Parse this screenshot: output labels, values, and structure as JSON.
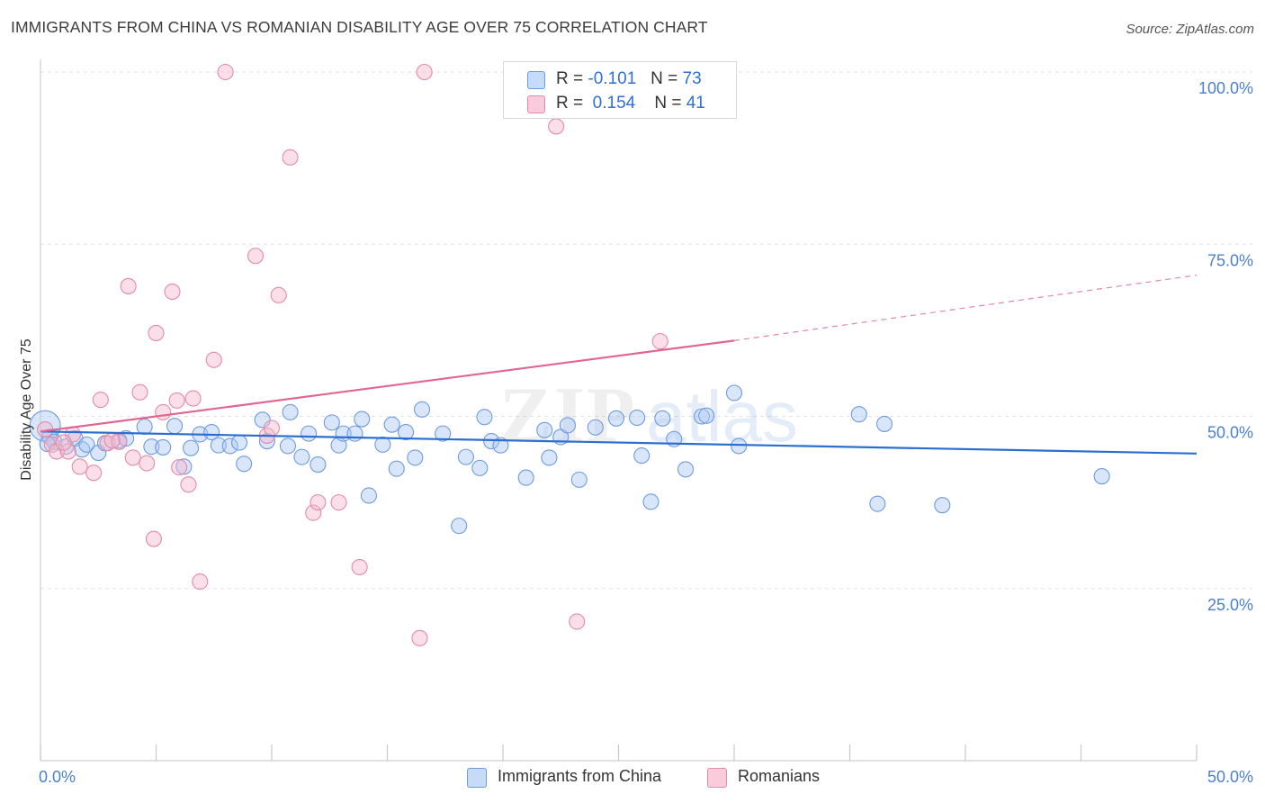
{
  "header": {
    "title": "IMMIGRANTS FROM CHINA VS ROMANIAN DISABILITY AGE OVER 75 CORRELATION CHART",
    "source": "Source: ZipAtlas.com"
  },
  "legend": {
    "r_label": "R =",
    "n_label": "N =",
    "rows": [
      {
        "r": "-0.101",
        "n": "73",
        "color": "#aac8f5"
      },
      {
        "r": "0.154",
        "n": "41",
        "color": "#f5b8cc"
      }
    ]
  },
  "bottom_legend": [
    {
      "label": "Immigrants from China",
      "color": "#aac8f5"
    },
    {
      "label": "Romanians",
      "color": "#f5b8cc"
    }
  ],
  "colors": {
    "blue_fill": "#aac8f5",
    "blue_stroke": "#6d9be0",
    "blue_line": "#2a6fd0",
    "pink_fill": "#f5b8cc",
    "pink_stroke": "#e58aa8",
    "pink_line": "#e0668f",
    "grid": "#e2e2e2",
    "tick_text": "#4a7fd1"
  },
  "chart_data": {
    "type": "scatter",
    "title": "IMMIGRANTS FROM CHINA VS ROMANIAN DISABILITY AGE OVER 75 CORRELATION CHART",
    "xlabel": "",
    "ylabel": "Disability Age Over 75",
    "xlim": [
      0,
      50
    ],
    "ylim": [
      0,
      100
    ],
    "x_tick_labels": [
      "0.0%",
      "50.0%"
    ],
    "y_ticks": [
      25,
      50,
      75,
      100
    ],
    "y_tick_labels": [
      "25.0%",
      "50.0%",
      "75.0%",
      "100.0%"
    ],
    "grid": true,
    "legend_position": "top-center",
    "watermark": "ZIPatlas",
    "series": [
      {
        "name": "Immigrants from China",
        "color": "#aac8f5",
        "trend": {
          "x": [
            0,
            50
          ],
          "y": [
            47.8,
            44.6
          ],
          "dashed_from": null
        },
        "points": [
          [
            0.2,
            48.6
          ],
          [
            0.4,
            47.0
          ],
          [
            0.6,
            46.3
          ],
          [
            1.1,
            45.6
          ],
          [
            1.5,
            46.8
          ],
          [
            1.8,
            45.2
          ],
          [
            2.0,
            45.9
          ],
          [
            2.5,
            44.7
          ],
          [
            2.8,
            46.1
          ],
          [
            3.4,
            46.5
          ],
          [
            3.7,
            46.8
          ],
          [
            4.5,
            48.5
          ],
          [
            4.8,
            45.6
          ],
          [
            5.3,
            45.5
          ],
          [
            5.8,
            48.6
          ],
          [
            6.2,
            42.7
          ],
          [
            6.5,
            45.4
          ],
          [
            6.9,
            47.4
          ],
          [
            7.4,
            47.7
          ],
          [
            7.7,
            45.8
          ],
          [
            8.2,
            45.7
          ],
          [
            8.6,
            46.2
          ],
          [
            8.8,
            43.1
          ],
          [
            9.6,
            49.5
          ],
          [
            9.8,
            46.4
          ],
          [
            10.7,
            45.7
          ],
          [
            10.8,
            50.6
          ],
          [
            11.3,
            44.1
          ],
          [
            11.6,
            47.5
          ],
          [
            12.0,
            43.0
          ],
          [
            12.6,
            49.1
          ],
          [
            12.9,
            45.8
          ],
          [
            13.1,
            47.5
          ],
          [
            13.6,
            47.5
          ],
          [
            13.9,
            49.6
          ],
          [
            14.2,
            38.5
          ],
          [
            14.8,
            45.9
          ],
          [
            15.2,
            48.8
          ],
          [
            15.4,
            42.4
          ],
          [
            15.8,
            47.7
          ],
          [
            16.2,
            44.0
          ],
          [
            16.5,
            51.0
          ],
          [
            17.4,
            47.5
          ],
          [
            18.1,
            34.1
          ],
          [
            18.4,
            44.1
          ],
          [
            19.0,
            42.5
          ],
          [
            19.2,
            49.9
          ],
          [
            19.5,
            46.4
          ],
          [
            19.9,
            45.8
          ],
          [
            21.0,
            41.1
          ],
          [
            21.8,
            48.0
          ],
          [
            22.0,
            44.0
          ],
          [
            22.5,
            47.0
          ],
          [
            22.8,
            48.7
          ],
          [
            23.3,
            40.8
          ],
          [
            24.0,
            48.4
          ],
          [
            24.9,
            49.7
          ],
          [
            25.8,
            49.8
          ],
          [
            26.0,
            44.3
          ],
          [
            26.4,
            37.6
          ],
          [
            26.9,
            49.7
          ],
          [
            27.4,
            46.7
          ],
          [
            27.9,
            42.3
          ],
          [
            28.6,
            50.0
          ],
          [
            28.8,
            50.1
          ],
          [
            30.0,
            53.4
          ],
          [
            30.2,
            45.7
          ],
          [
            35.4,
            50.3
          ],
          [
            36.2,
            37.3
          ],
          [
            36.5,
            48.9
          ],
          [
            39.0,
            37.1
          ],
          [
            45.9,
            41.3
          ],
          [
            0.3,
            46.0
          ]
        ]
      },
      {
        "name": "Romanians",
        "color": "#f5b8cc",
        "trend": {
          "x": [
            0,
            30,
            50
          ],
          "y": [
            47.8,
            61.0,
            70.5
          ],
          "dashed_from": 30
        },
        "points": [
          [
            0.2,
            48.1
          ],
          [
            0.5,
            45.9
          ],
          [
            0.7,
            44.9
          ],
          [
            1.2,
            44.9
          ],
          [
            1.4,
            47.4
          ],
          [
            1.7,
            42.7
          ],
          [
            2.3,
            41.8
          ],
          [
            2.6,
            52.4
          ],
          [
            2.9,
            46.1
          ],
          [
            3.4,
            46.3
          ],
          [
            3.8,
            68.9
          ],
          [
            4.0,
            44.0
          ],
          [
            4.3,
            53.5
          ],
          [
            4.6,
            43.2
          ],
          [
            4.9,
            32.2
          ],
          [
            5.0,
            62.1
          ],
          [
            5.3,
            50.6
          ],
          [
            5.7,
            68.1
          ],
          [
            5.9,
            52.3
          ],
          [
            6.0,
            42.6
          ],
          [
            6.4,
            40.1
          ],
          [
            6.6,
            52.6
          ],
          [
            6.9,
            26.0
          ],
          [
            7.5,
            58.2
          ],
          [
            8.0,
            100.0
          ],
          [
            9.3,
            73.3
          ],
          [
            9.8,
            47.2
          ],
          [
            10.0,
            48.3
          ],
          [
            10.3,
            67.6
          ],
          [
            10.8,
            87.6
          ],
          [
            11.8,
            36.0
          ],
          [
            12.0,
            37.5
          ],
          [
            12.9,
            37.5
          ],
          [
            13.8,
            28.1
          ],
          [
            16.4,
            17.8
          ],
          [
            16.6,
            100.0
          ],
          [
            22.3,
            92.1
          ],
          [
            23.2,
            20.2
          ],
          [
            26.8,
            60.9
          ],
          [
            3.1,
            46.5
          ],
          [
            1.0,
            46.2
          ]
        ]
      }
    ]
  }
}
